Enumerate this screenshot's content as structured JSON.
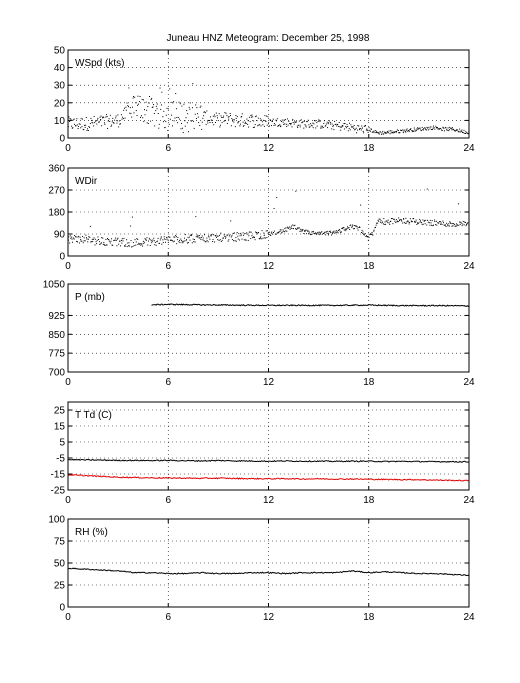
{
  "title": "Juneau HNZ Meteogram:   December 25, 1998",
  "chart_data": [
    {
      "type": "scatter",
      "label": "WSpd (kts)",
      "xlim": [
        0,
        24
      ],
      "ylim": [
        0,
        50
      ],
      "xticks": [
        0,
        6,
        12,
        18,
        24
      ],
      "yticks": [
        0,
        10,
        20,
        30,
        40,
        50
      ],
      "grid": true,
      "series": [
        {
          "color": "#000000",
          "x": [
            0,
            1,
            2,
            3,
            3.5,
            4,
            4.5,
            5,
            5.5,
            6,
            6.5,
            7,
            7.5,
            8,
            8.5,
            9,
            9.5,
            10,
            11,
            12,
            13,
            14,
            15,
            16,
            17,
            17.5,
            18,
            18.5,
            19,
            20,
            21,
            22,
            22.5,
            23,
            23.5,
            24
          ],
          "y": [
            8,
            8,
            9,
            10,
            14,
            16,
            17,
            14,
            14,
            13,
            12,
            12,
            12,
            12,
            11,
            10,
            11,
            10,
            10,
            9,
            9,
            8,
            8,
            7,
            6,
            5,
            5,
            3,
            3,
            4,
            5,
            6,
            5,
            5,
            4,
            3
          ]
        }
      ]
    },
    {
      "type": "scatter",
      "label": "WDir",
      "xlim": [
        0,
        24
      ],
      "ylim": [
        0,
        360
      ],
      "xticks": [
        0,
        6,
        12,
        18,
        24
      ],
      "yticks": [
        0,
        90,
        180,
        270,
        360
      ],
      "grid": true,
      "series": [
        {
          "color": "#000000",
          "x": [
            0,
            1,
            2,
            3,
            4,
            5,
            6,
            7,
            8,
            9,
            10,
            11,
            12,
            13,
            13.5,
            14,
            15,
            16,
            16.5,
            17,
            17.5,
            18,
            18.3,
            18.6,
            19,
            20,
            21,
            22,
            23,
            24
          ],
          "y": [
            70,
            68,
            60,
            55,
            55,
            60,
            65,
            70,
            72,
            75,
            78,
            82,
            90,
            105,
            120,
            100,
            90,
            95,
            110,
            120,
            110,
            70,
            100,
            150,
            140,
            145,
            140,
            135,
            130,
            130
          ]
        }
      ]
    },
    {
      "type": "line",
      "label": "P (mb)",
      "xlim": [
        0,
        24
      ],
      "ylim": [
        700,
        1050
      ],
      "xticks": [
        0,
        6,
        12,
        18,
        24
      ],
      "yticks": [
        700,
        775,
        850,
        925,
        1050
      ],
      "grid": true,
      "series": [
        {
          "color": "#000000",
          "x": [
            5,
            6,
            8,
            10,
            12,
            14,
            16,
            18,
            20,
            22,
            24
          ],
          "y": [
            967,
            969,
            967,
            966,
            965,
            965,
            965,
            966,
            964,
            964,
            963
          ]
        }
      ]
    },
    {
      "type": "line",
      "label": "T Td (C)",
      "xlim": [
        0,
        24
      ],
      "ylim": [
        -25,
        30
      ],
      "xticks": [
        0,
        6,
        12,
        18,
        24
      ],
      "yticks": [
        -25,
        -15,
        -5,
        5,
        15,
        25
      ],
      "grid": true,
      "series": [
        {
          "color": "#000000",
          "x": [
            0,
            1,
            2,
            3,
            4,
            5,
            6,
            7,
            8,
            9,
            10,
            11,
            12,
            13,
            14,
            15,
            16,
            17,
            18,
            19,
            20,
            21,
            22,
            23,
            24
          ],
          "y": [
            -6,
            -6.2,
            -6.3,
            -6.5,
            -6.5,
            -6.6,
            -6.5,
            -6.7,
            -6.8,
            -6.6,
            -6.8,
            -6.9,
            -7,
            -6.9,
            -7,
            -7,
            -7.1,
            -7,
            -7,
            -7.2,
            -7.1,
            -7.2,
            -7.3,
            -7.3,
            -7.4
          ]
        },
        {
          "color": "#e00000",
          "x": [
            0,
            1,
            2,
            3,
            4,
            5,
            6,
            7,
            8,
            9,
            10,
            11,
            12,
            13,
            14,
            15,
            16,
            17,
            18,
            19,
            20,
            21,
            22,
            23,
            24
          ],
          "y": [
            -15.5,
            -16,
            -16.5,
            -17,
            -17.2,
            -17.4,
            -17.5,
            -17.6,
            -17.7,
            -17.6,
            -17.8,
            -17.9,
            -18,
            -17.9,
            -18.1,
            -18,
            -18.2,
            -18.1,
            -18.3,
            -18.4,
            -18.5,
            -18.6,
            -18.8,
            -19,
            -19.2
          ]
        }
      ]
    },
    {
      "type": "line",
      "label": "RH (%)",
      "xlim": [
        0,
        24
      ],
      "ylim": [
        0,
        100
      ],
      "xticks": [
        0,
        6,
        12,
        18,
        24
      ],
      "yticks": [
        0,
        25,
        50,
        75,
        100
      ],
      "grid": true,
      "series": [
        {
          "color": "#000000",
          "x": [
            0,
            1,
            2,
            3,
            4,
            5,
            6,
            7,
            8,
            9,
            10,
            11,
            12,
            13,
            14,
            15,
            16,
            17,
            18,
            19,
            20,
            21,
            22,
            23,
            24
          ],
          "y": [
            44,
            43,
            42,
            41,
            39,
            39,
            38,
            38,
            39,
            38,
            38,
            39,
            39,
            38,
            39,
            39,
            39,
            41,
            39,
            40,
            39,
            38,
            38,
            37,
            36
          ]
        }
      ]
    }
  ]
}
